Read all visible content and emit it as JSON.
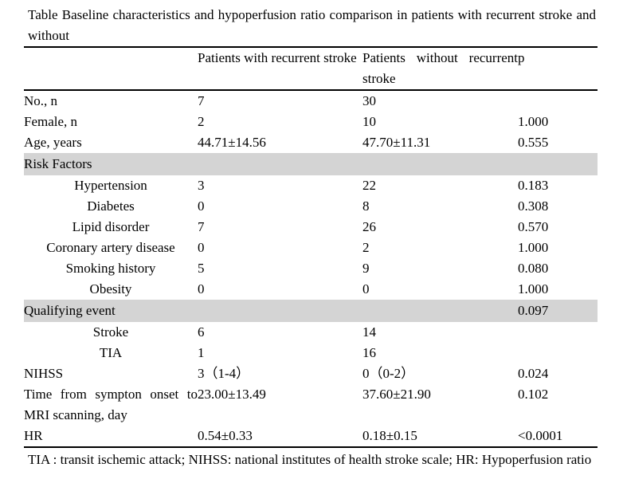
{
  "title": "Table Baseline characteristics and hypoperfusion ratio comparison in patients with recurrent stroke and without",
  "table": {
    "columns": [
      "",
      "Patients with recurrent stroke",
      "Patients without recurrent stroke",
      "p"
    ],
    "rows": [
      {
        "type": "data",
        "indent": false,
        "label": "No., n",
        "with_recurrent": "7",
        "without_recurrent": "30",
        "p": ""
      },
      {
        "type": "data",
        "indent": false,
        "label": "Female, n",
        "with_recurrent": "2",
        "without_recurrent": "10",
        "p": "1.000"
      },
      {
        "type": "data",
        "indent": false,
        "label": "Age, years",
        "with_recurrent": "44.71±14.56",
        "without_recurrent": "47.70±11.31",
        "p": "0.555"
      },
      {
        "type": "section",
        "indent": false,
        "label": "Risk Factors",
        "with_recurrent": "",
        "without_recurrent": "",
        "p": ""
      },
      {
        "type": "data",
        "indent": true,
        "label": "Hypertension",
        "with_recurrent": "3",
        "without_recurrent": "22",
        "p": "0.183"
      },
      {
        "type": "data",
        "indent": true,
        "label": "Diabetes",
        "with_recurrent": "0",
        "without_recurrent": "8",
        "p": "0.308"
      },
      {
        "type": "data",
        "indent": true,
        "label": "Lipid disorder",
        "with_recurrent": "7",
        "without_recurrent": "26",
        "p": "0.570"
      },
      {
        "type": "data",
        "indent": true,
        "label": "Coronary artery disease",
        "with_recurrent": "0",
        "without_recurrent": "2",
        "p": "1.000"
      },
      {
        "type": "data",
        "indent": true,
        "label": "Smoking history",
        "with_recurrent": "5",
        "without_recurrent": "9",
        "p": "0.080"
      },
      {
        "type": "data",
        "indent": true,
        "label": "Obesity",
        "with_recurrent": "0",
        "without_recurrent": "0",
        "p": "1.000"
      },
      {
        "type": "section",
        "indent": false,
        "label": "Qualifying event",
        "with_recurrent": "",
        "without_recurrent": "",
        "p": "0.097"
      },
      {
        "type": "data",
        "indent": true,
        "label": "Stroke",
        "with_recurrent": "6",
        "without_recurrent": "14",
        "p": ""
      },
      {
        "type": "data",
        "indent": true,
        "label": "TIA",
        "with_recurrent": "1",
        "without_recurrent": "16",
        "p": ""
      },
      {
        "type": "data",
        "indent": false,
        "label": "NIHSS",
        "with_recurrent": "3（1-4）",
        "without_recurrent": "0（0-2）",
        "p": "0.024"
      },
      {
        "type": "data",
        "indent": false,
        "label": "Time from sympton onset to MRI scanning, day",
        "with_recurrent": "23.00±13.49",
        "without_recurrent": "37.60±21.90",
        "p": "0.102"
      },
      {
        "type": "data",
        "indent": false,
        "label": "HR",
        "with_recurrent": "0.54±0.33",
        "without_recurrent": "0.18±0.15",
        "p": "<0.0001"
      }
    ]
  },
  "footnote": "TIA : transit ischemic attack; NIHSS: national institutes of health stroke scale; HR: Hypoperfusion ratio",
  "colors": {
    "section_row_bg": "#d4d4d4",
    "rule_color": "#000000",
    "text_color": "#000000"
  }
}
